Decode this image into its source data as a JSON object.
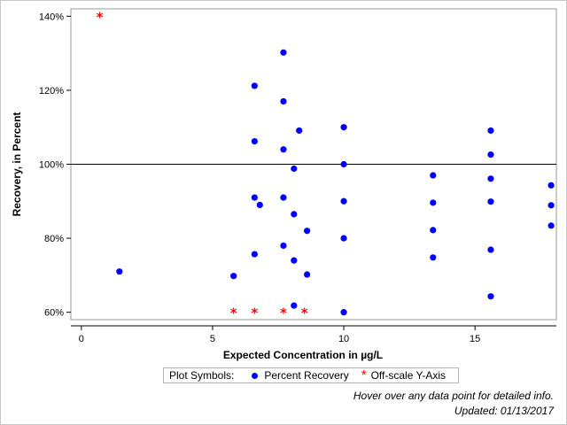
{
  "chart_data": {
    "type": "scatter",
    "xlabel": "Expected Concentration in µg/L",
    "ylabel": "Recovery, in Percent",
    "xlim": [
      -0.4,
      18.1
    ],
    "ylim": [
      58,
      142
    ],
    "x_ticks": [
      0,
      5,
      10,
      15
    ],
    "y_ticks": [
      60,
      80,
      100,
      120,
      140
    ],
    "y_tick_labels": [
      "60%",
      "80%",
      "100%",
      "120%",
      "140%"
    ],
    "reference_line_y": 100,
    "grid": false,
    "legend_title": "Plot Symbols:",
    "series": [
      {
        "name": "Percent Recovery",
        "marker": "dot",
        "color": "#0000ff",
        "points": [
          [
            1.45,
            71
          ],
          [
            5.8,
            69.8
          ],
          [
            6.6,
            121.2
          ],
          [
            6.6,
            106.2
          ],
          [
            6.6,
            91
          ],
          [
            6.6,
            75.7
          ],
          [
            6.8,
            89
          ],
          [
            7.7,
            130.2
          ],
          [
            7.7,
            117
          ],
          [
            7.7,
            104
          ],
          [
            7.7,
            91
          ],
          [
            7.7,
            78
          ],
          [
            8.1,
            98.8
          ],
          [
            8.1,
            86.5
          ],
          [
            8.1,
            74
          ],
          [
            8.1,
            61.8
          ],
          [
            8.3,
            109.1
          ],
          [
            8.6,
            82
          ],
          [
            8.6,
            70.2
          ],
          [
            10,
            110
          ],
          [
            10,
            100
          ],
          [
            10,
            90
          ],
          [
            10,
            80
          ],
          [
            10,
            60
          ],
          [
            13.4,
            97
          ],
          [
            13.4,
            89.6
          ],
          [
            13.4,
            82.2
          ],
          [
            13.4,
            74.8
          ],
          [
            15.6,
            109.1
          ],
          [
            15.6,
            102.6
          ],
          [
            15.6,
            96.1
          ],
          [
            15.6,
            89.9
          ],
          [
            15.6,
            76.9
          ],
          [
            15.6,
            64.3
          ],
          [
            17.9,
            94.3
          ],
          [
            17.9,
            88.9
          ],
          [
            17.9,
            83.4
          ]
        ]
      },
      {
        "name": "Off-scale Y-Axis",
        "marker": "star",
        "color": "#ff0000",
        "points": [
          [
            0.7,
            140
          ],
          [
            5.8,
            60
          ],
          [
            6.6,
            60
          ],
          [
            7.7,
            60
          ],
          [
            8.5,
            60
          ]
        ]
      }
    ]
  },
  "footer": {
    "hover_hint": "Hover over any data point for detailed info.",
    "updated": "Updated: 01/13/2017"
  }
}
